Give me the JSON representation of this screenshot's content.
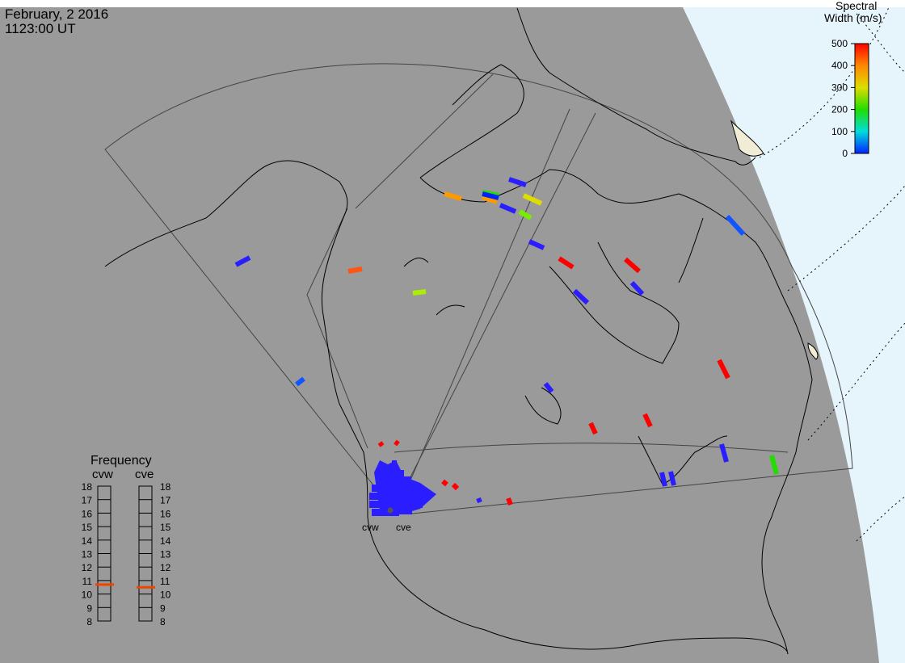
{
  "header": {
    "date": "February, 2 2016",
    "time": "1123:00 UT"
  },
  "colorbar": {
    "title_line1": "Spectral",
    "title_line2": "Width (m/s)",
    "ticks": [
      "500",
      "400",
      "300",
      "200",
      "100",
      "0"
    ],
    "min": 0,
    "max": 500,
    "colors": [
      "#ff0000",
      "#ff8800",
      "#dddd00",
      "#22dd00",
      "#00dddd",
      "#0022ff"
    ]
  },
  "radars": [
    {
      "name": "cvw",
      "label": "cvw"
    },
    {
      "name": "cve",
      "label": "cve"
    }
  ],
  "frequency": {
    "title": "Frequency",
    "ticks": [
      "18",
      "17",
      "16",
      "15",
      "14",
      "13",
      "12",
      "11",
      "10",
      "9",
      "8"
    ],
    "cvw_value": 10.7,
    "cve_value": 10.5,
    "marker_color": "#ee4400"
  },
  "colors": {
    "land": "#9a9a9a",
    "ocean": "#e6f4fb",
    "coast": "#000000",
    "grid": "#000000",
    "fov": "#444444"
  }
}
